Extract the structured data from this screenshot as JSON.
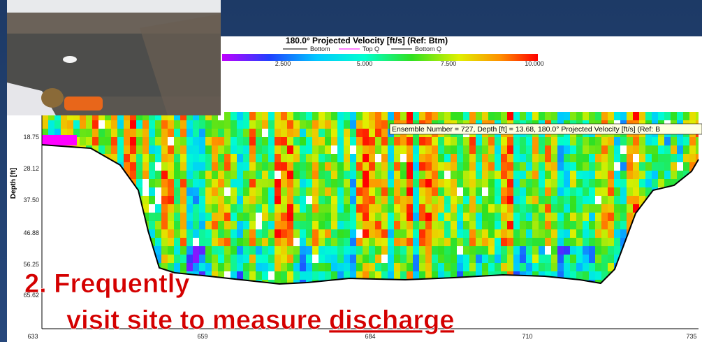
{
  "plot": {
    "title": "180.0° Projected Velocity [ft/s] (Ref: Btm)",
    "legend": [
      "Bottom",
      "Top Q",
      "Bottom Q"
    ],
    "colorbar_labels": [
      "2.500",
      "5.000",
      "7.500",
      "10.000"
    ],
    "y_axis_label": "Depth [ft]",
    "y_ticks": [
      "18.75",
      "28.12",
      "37.50",
      "46.88",
      "56.25",
      "65.62"
    ],
    "x_ticks": [
      "633",
      "659",
      "684",
      "710",
      "735"
    ],
    "tooltip": "Ensemble Number = 727, Depth [ft] = 13.68, 180.0° Projected Velocity [ft/s] (Ref: B"
  },
  "slide": {
    "line1": "2. Frequently",
    "line2": "visit site to measure",
    "line2_underlined": "discharge"
  }
}
